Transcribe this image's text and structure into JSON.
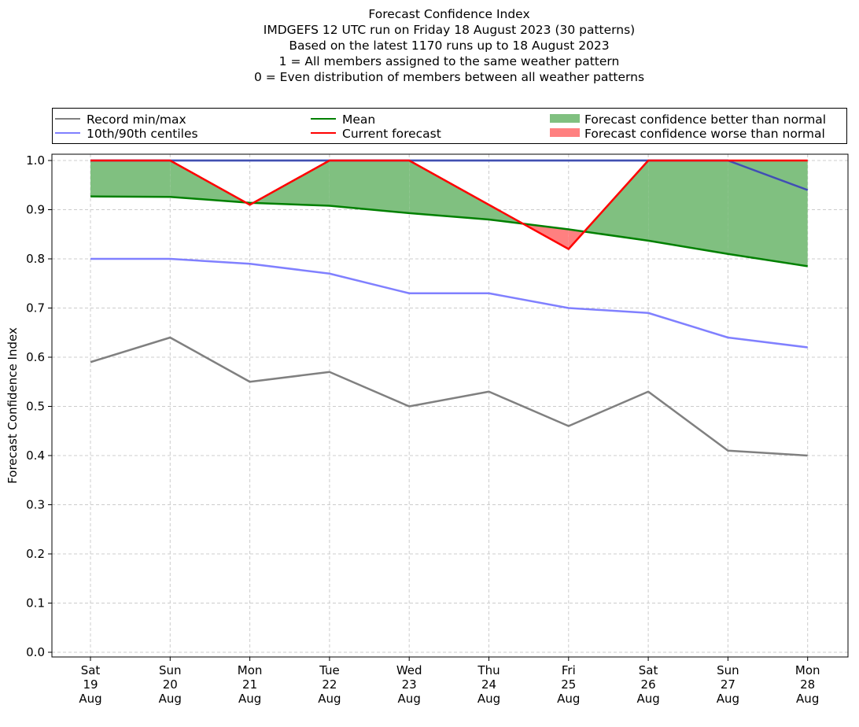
{
  "title_lines": [
    "Forecast Confidence Index",
    "IMDGEFS 12 UTC run on Friday 18 August 2023 (30 patterns)",
    "Based on the latest 1170 runs up to 18 August 2023",
    "1 = All members assigned to the same weather pattern",
    "0 = Even distribution of members between all weather patterns"
  ],
  "legend": {
    "record": "Record min/max",
    "centiles": "10th/90th centiles",
    "mean": "Mean",
    "current": "Current forecast",
    "better": "Forecast confidence better than normal",
    "worse": "Forecast confidence worse than normal"
  },
  "colors": {
    "record": "#808080",
    "centiles": "#8080ff",
    "record_max_overlay": "#4050b0",
    "mean": "#008000",
    "current": "#ff0000",
    "better": "#80c080",
    "worse": "#ff8080",
    "grid": "#cccccc"
  },
  "chart_data": {
    "type": "line",
    "title": "Forecast Confidence Index",
    "ylabel": "Forecast Confidence Index",
    "xlabel": "",
    "ylim": [
      0.0,
      1.0
    ],
    "yticks": [
      "0.0",
      "0.1",
      "0.2",
      "0.3",
      "0.4",
      "0.5",
      "0.6",
      "0.7",
      "0.8",
      "0.9",
      "1.0"
    ],
    "grid": true,
    "legend_position": "top",
    "categories": [
      [
        "Sat",
        "19",
        "Aug"
      ],
      [
        "Sun",
        "20",
        "Aug"
      ],
      [
        "Mon",
        "21",
        "Aug"
      ],
      [
        "Tue",
        "22",
        "Aug"
      ],
      [
        "Wed",
        "23",
        "Aug"
      ],
      [
        "Thu",
        "24",
        "Aug"
      ],
      [
        "Fri",
        "25",
        "Aug"
      ],
      [
        "Sat",
        "26",
        "Aug"
      ],
      [
        "Sun",
        "27",
        "Aug"
      ],
      [
        "Mon",
        "28",
        "Aug"
      ]
    ],
    "series": [
      {
        "name": "Record min",
        "key": "record",
        "values": [
          0.59,
          0.64,
          0.55,
          0.57,
          0.5,
          0.53,
          0.46,
          0.53,
          0.41,
          0.4
        ]
      },
      {
        "name": "Record max",
        "key": "record_max_overlay",
        "values": [
          1.0,
          1.0,
          1.0,
          1.0,
          1.0,
          1.0,
          1.0,
          1.0,
          1.0,
          0.94
        ]
      },
      {
        "name": "10th centile",
        "key": "centiles",
        "values": [
          0.8,
          0.8,
          0.79,
          0.77,
          0.73,
          0.73,
          0.7,
          0.69,
          0.64,
          0.62
        ]
      },
      {
        "name": "90th centile",
        "key": "centiles",
        "values": [
          1.0,
          1.0,
          1.0,
          1.0,
          1.0,
          1.0,
          1.0,
          1.0,
          1.0,
          0.94
        ]
      },
      {
        "name": "Mean",
        "key": "mean",
        "values": [
          0.927,
          0.926,
          0.914,
          0.908,
          0.893,
          0.88,
          0.86,
          0.837,
          0.81,
          0.785
        ]
      },
      {
        "name": "Current forecast",
        "key": "current",
        "values": [
          1.0,
          1.0,
          0.91,
          1.0,
          1.0,
          0.91,
          0.82,
          1.0,
          1.0,
          1.0
        ]
      }
    ]
  }
}
